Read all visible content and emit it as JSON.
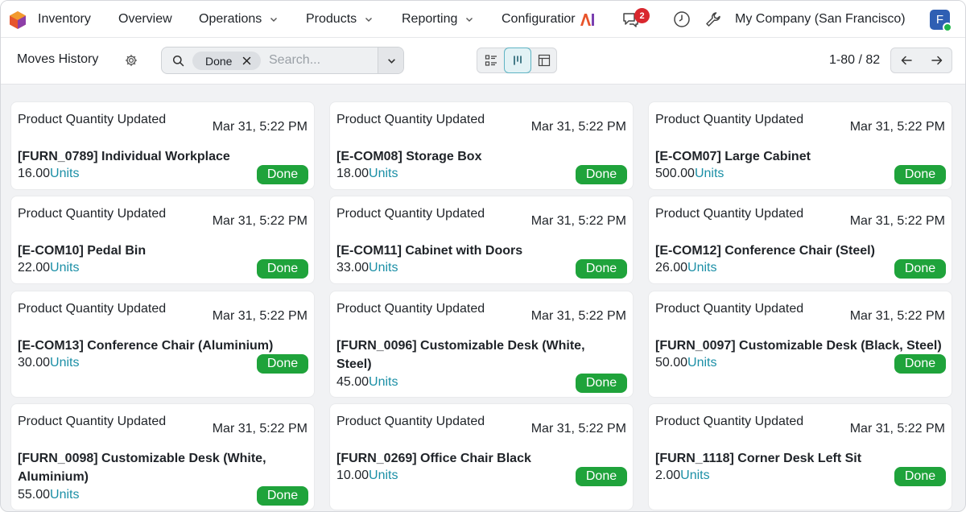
{
  "topbar": {
    "app_name": "Inventory",
    "menus": [
      {
        "label": "Overview"
      },
      {
        "label": "Operations"
      },
      {
        "label": "Products"
      },
      {
        "label": "Reporting"
      },
      {
        "label": "Configuratior"
      }
    ],
    "messages_count": "2",
    "company": "My Company (San Francisco)",
    "avatar_initial": "F"
  },
  "control": {
    "title": "Moves History",
    "search": {
      "facet": "Done",
      "placeholder": "Search..."
    },
    "pager": {
      "value": "1-80 / 82"
    }
  },
  "cards": [
    {
      "title": "Product Quantity Updated",
      "date": "Mar 31, 5:22 PM",
      "product": "[FURN_0789] Individual Workplace",
      "qty": "16.00",
      "uom": "Units",
      "state": "Done"
    },
    {
      "title": "Product Quantity Updated",
      "date": "Mar 31, 5:22 PM",
      "product": "[E-COM08] Storage Box",
      "qty": "18.00",
      "uom": "Units",
      "state": "Done"
    },
    {
      "title": "Product Quantity Updated",
      "date": "Mar 31, 5:22 PM",
      "product": "[E-COM07] Large Cabinet",
      "qty": "500.00",
      "uom": "Units",
      "state": "Done"
    },
    {
      "title": "Product Quantity Updated",
      "date": "Mar 31, 5:22 PM",
      "product": "[E-COM10] Pedal Bin",
      "qty": "22.00",
      "uom": "Units",
      "state": "Done"
    },
    {
      "title": "Product Quantity Updated",
      "date": "Mar 31, 5:22 PM",
      "product": "[E-COM11] Cabinet with Doors",
      "qty": "33.00",
      "uom": "Units",
      "state": "Done"
    },
    {
      "title": "Product Quantity Updated",
      "date": "Mar 31, 5:22 PM",
      "product": "[E-COM12] Conference Chair (Steel)",
      "qty": "26.00",
      "uom": "Units",
      "state": "Done"
    },
    {
      "title": "Product Quantity Updated",
      "date": "Mar 31, 5:22 PM",
      "product": "[E-COM13] Conference Chair (Aluminium)",
      "qty": "30.00",
      "uom": "Units",
      "state": "Done"
    },
    {
      "title": "Product Quantity Updated",
      "date": "Mar 31, 5:22 PM",
      "product": "[FURN_0096] Customizable Desk (White, Steel)",
      "qty": "45.00",
      "uom": "Units",
      "state": "Done"
    },
    {
      "title": "Product Quantity Updated",
      "date": "Mar 31, 5:22 PM",
      "product": "[FURN_0097] Customizable Desk (Black, Steel)",
      "qty": "50.00",
      "uom": "Units",
      "state": "Done"
    },
    {
      "title": "Product Quantity Updated",
      "date": "Mar 31, 5:22 PM",
      "product": "[FURN_0098] Customizable Desk (White, Aluminium)",
      "qty": "55.00",
      "uom": "Units",
      "state": "Done"
    },
    {
      "title": "Product Quantity Updated",
      "date": "Mar 31, 5:22 PM",
      "product": "[FURN_0269] Office Chair Black",
      "qty": "10.00",
      "uom": "Units",
      "state": "Done"
    },
    {
      "title": "Product Quantity Updated",
      "date": "Mar 31, 5:22 PM",
      "product": "[FURN_1118] Corner Desk Left Sit",
      "qty": "2.00",
      "uom": "Units",
      "state": "Done"
    }
  ],
  "colors": {
    "done_badge": "#1fa33b",
    "unit_link": "#1b8fa6",
    "active_view": "#5fb4c4"
  }
}
